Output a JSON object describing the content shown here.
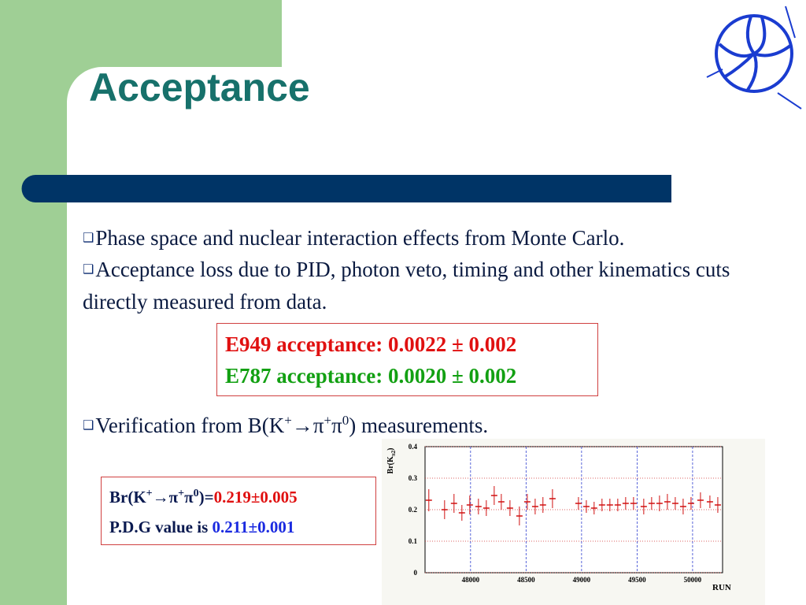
{
  "slide": {
    "title": "Acceptance",
    "bullets": [
      {
        "parts": [
          "Phase space and nuclear interaction effects from Monte Carlo."
        ]
      },
      {
        "parts": [
          "Acceptance loss due to PID, photon veto, timing and  other kinematics cuts directly measured from data."
        ]
      },
      {
        "parts": [
          "Verification from B(K",
          "+",
          "→π",
          "+",
          "π",
          "0",
          ") measurements."
        ]
      }
    ],
    "acceptance_box": [
      "E949 acceptance: 0.0022 ± 0.002",
      "E787 acceptance: 0.0020 ± 0.002"
    ],
    "result_box": {
      "line1": [
        "Br(K",
        "+",
        "→π",
        "+",
        "π",
        "0",
        ")=",
        "0.219±0.005"
      ],
      "line2": [
        "P.D.G value is ",
        "0.211±0.001"
      ]
    },
    "plot": {
      "type": "errorbar",
      "y_label": [
        "Br(K",
        "π2",
        ")"
      ],
      "x_label": "RUN",
      "xlim": [
        47590,
        50270
      ],
      "ylim": [
        0,
        0.4
      ],
      "xticks": [
        48000,
        48500,
        49000,
        49500,
        50000
      ],
      "yticks": [
        0,
        0.1,
        0.2,
        0.3,
        0.4
      ],
      "color": "#d01010",
      "x": [
        47624,
        47766,
        47851,
        47922,
        47993,
        48071,
        48142,
        48213,
        48277,
        48355,
        48440,
        48511,
        48582,
        48652,
        48738,
        48972,
        49043,
        49113,
        49184,
        49255,
        49326,
        49397,
        49468,
        49560,
        49631,
        49702,
        49773,
        49844,
        49915,
        49986,
        50071,
        50156,
        50227
      ],
      "values": [
        0.23,
        0.2,
        0.22,
        0.19,
        0.215,
        0.21,
        0.205,
        0.245,
        0.225,
        0.205,
        0.18,
        0.225,
        0.21,
        0.215,
        0.235,
        0.22,
        0.21,
        0.205,
        0.215,
        0.215,
        0.215,
        0.22,
        0.22,
        0.21,
        0.22,
        0.22,
        0.225,
        0.22,
        0.21,
        0.22,
        0.23,
        0.225,
        0.215
      ],
      "errors": [
        0.035,
        0.03,
        0.03,
        0.025,
        0.03,
        0.025,
        0.025,
        0.03,
        0.025,
        0.025,
        0.03,
        0.025,
        0.025,
        0.025,
        0.03,
        0.02,
        0.02,
        0.02,
        0.02,
        0.02,
        0.02,
        0.02,
        0.02,
        0.025,
        0.02,
        0.025,
        0.025,
        0.02,
        0.025,
        0.02,
        0.025,
        0.02,
        0.025
      ]
    }
  }
}
